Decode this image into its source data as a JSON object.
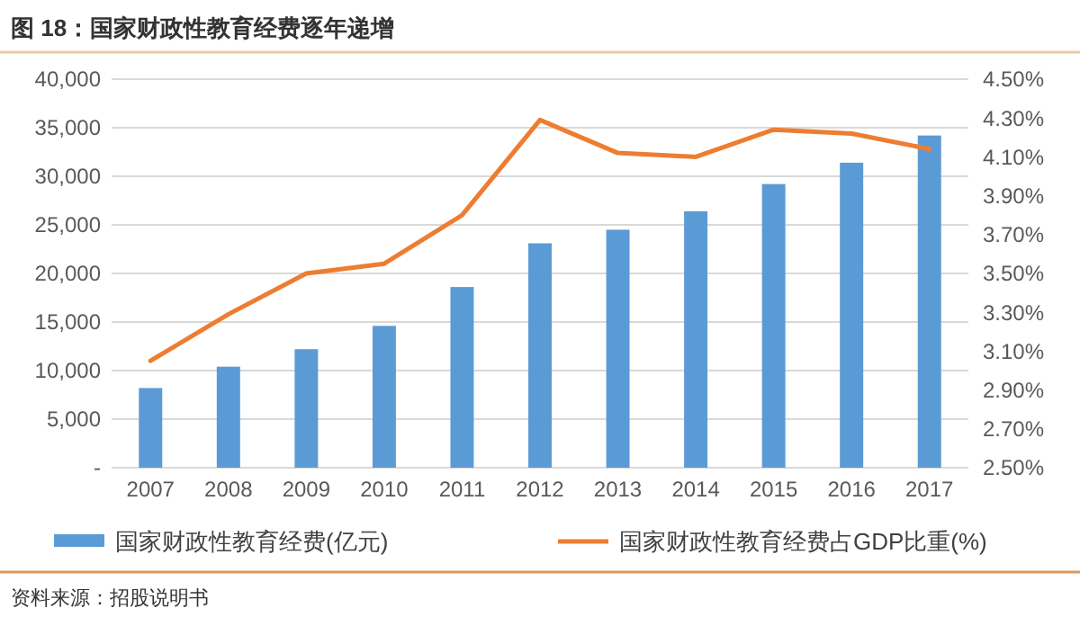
{
  "chart_data": {
    "type": "bar",
    "title": "图 18：国家财政性教育经费逐年递增",
    "categories": [
      "2007",
      "2008",
      "2009",
      "2010",
      "2011",
      "2012",
      "2013",
      "2014",
      "2015",
      "2016",
      "2017"
    ],
    "series": [
      {
        "name": "国家财政性教育经费(亿元)",
        "color": "#5b9bd5",
        "values": [
          8200,
          10400,
          12200,
          14600,
          18600,
          23100,
          24500,
          26400,
          29200,
          31400,
          34200
        ]
      },
      {
        "name": "国家财政性教育经费占GDP比重(%)",
        "type": "line",
        "axis": "y2",
        "color": "#ed7d31",
        "values": [
          3.05,
          3.29,
          3.5,
          3.55,
          3.8,
          4.29,
          4.12,
          4.1,
          4.24,
          4.22,
          4.14
        ]
      }
    ],
    "ylim": [
      0,
      40000
    ],
    "yticks": [
      {
        "value": 0,
        "label": "-"
      },
      {
        "value": 5000,
        "label": "5,000"
      },
      {
        "value": 10000,
        "label": "10,000"
      },
      {
        "value": 15000,
        "label": "15,000"
      },
      {
        "value": 20000,
        "label": "20,000"
      },
      {
        "value": 25000,
        "label": "25,000"
      },
      {
        "value": 30000,
        "label": "30,000"
      },
      {
        "value": 35000,
        "label": "35,000"
      },
      {
        "value": 40000,
        "label": "40,000"
      }
    ],
    "y2lim": [
      2.5,
      4.5
    ],
    "y2ticks": [
      {
        "value": 2.5,
        "label": "2.50%"
      },
      {
        "value": 2.7,
        "label": "2.70%"
      },
      {
        "value": 2.9,
        "label": "2.90%"
      },
      {
        "value": 3.1,
        "label": "3.10%"
      },
      {
        "value": 3.3,
        "label": "3.30%"
      },
      {
        "value": 3.5,
        "label": "3.50%"
      },
      {
        "value": 3.7,
        "label": "3.70%"
      },
      {
        "value": 3.9,
        "label": "3.90%"
      },
      {
        "value": 4.1,
        "label": "4.10%"
      },
      {
        "value": 4.3,
        "label": "4.30%"
      },
      {
        "value": 4.5,
        "label": "4.50%"
      }
    ],
    "grid": "y",
    "legend": "bottom",
    "annotations": [
      "资料来源：招股说明书"
    ]
  }
}
